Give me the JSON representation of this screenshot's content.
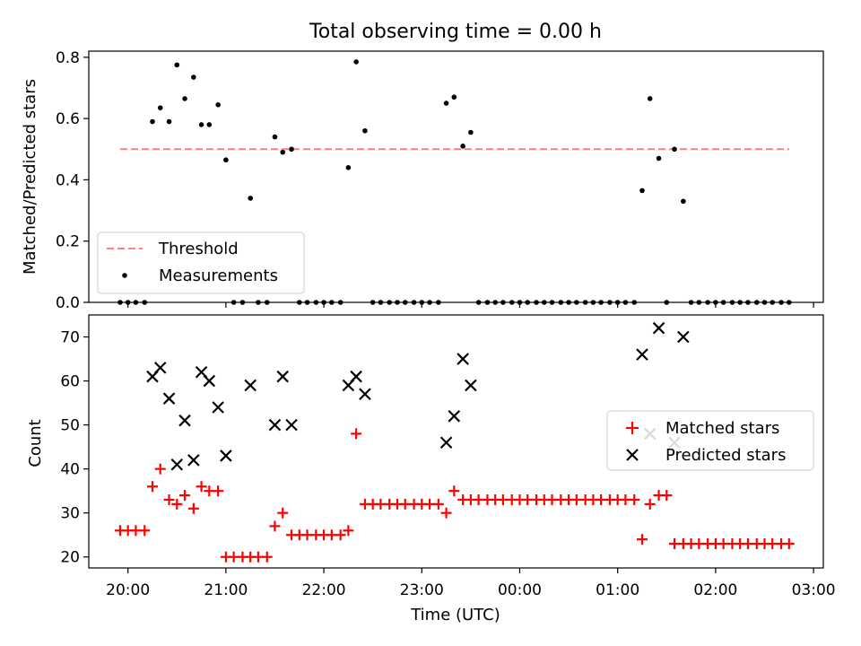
{
  "title": "Total observing time = 0.00 h",
  "x_axis": {
    "label": "Time (UTC)",
    "ticks": [
      {
        "value": 20.0,
        "label": "20:00"
      },
      {
        "value": 21.0,
        "label": "21:00"
      },
      {
        "value": 22.0,
        "label": "22:00"
      },
      {
        "value": 23.0,
        "label": "23:00"
      },
      {
        "value": 24.0,
        "label": "00:00"
      },
      {
        "value": 25.0,
        "label": "01:00"
      },
      {
        "value": 26.0,
        "label": "02:00"
      },
      {
        "value": 27.0,
        "label": "03:00"
      }
    ]
  },
  "colors": {
    "threshold": "#ff7f7f",
    "measurements": "#000000",
    "matched": "#ff0000",
    "predicted": "#000000"
  },
  "chart_data": [
    {
      "type": "scatter",
      "ylabel": "Matched/Predicted stars",
      "xlim": [
        19.6,
        27.1
      ],
      "ylim": [
        0.0,
        0.82
      ],
      "y_ticks": [
        "0.0",
        "0.2",
        "0.4",
        "0.6",
        "0.8"
      ],
      "y_tick_values": [
        0.0,
        0.2,
        0.4,
        0.6,
        0.8
      ],
      "legend_position": "lower-left",
      "threshold": {
        "name": "Threshold",
        "value": 0.5,
        "x_range": [
          19.92,
          26.75
        ]
      },
      "series": [
        {
          "name": "Measurements",
          "x": [
            19.92,
            20.0,
            20.08,
            20.17,
            20.25,
            20.33,
            20.42,
            20.5,
            20.58,
            20.67,
            20.75,
            20.83,
            20.92,
            21.0,
            21.08,
            21.17,
            21.25,
            21.33,
            21.42,
            21.5,
            21.58,
            21.67,
            21.75,
            21.83,
            21.92,
            22.0,
            22.08,
            22.17,
            22.25,
            22.33,
            22.42,
            22.5,
            22.58,
            22.67,
            22.75,
            22.83,
            22.92,
            23.0,
            23.08,
            23.17,
            23.25,
            23.33,
            23.42,
            23.5,
            23.58,
            23.67,
            23.75,
            23.83,
            23.92,
            24.0,
            24.08,
            24.17,
            24.25,
            24.33,
            24.42,
            24.5,
            24.58,
            24.67,
            24.75,
            24.83,
            24.92,
            25.0,
            25.08,
            25.17,
            25.25,
            25.33,
            25.42,
            25.5,
            25.58,
            25.67,
            25.75,
            25.83,
            25.92,
            26.0,
            26.08,
            26.17,
            26.25,
            26.33,
            26.42,
            26.5,
            26.58,
            26.67,
            26.75
          ],
          "y": [
            0,
            0,
            0,
            0,
            0.59,
            0.635,
            0.59,
            0.775,
            0.665,
            0.735,
            0.58,
            0.58,
            0.645,
            0.465,
            0,
            0,
            0.34,
            0,
            0,
            0.54,
            0.49,
            0.5,
            0,
            0,
            0,
            0,
            0,
            0,
            0.44,
            0.785,
            0.56,
            0,
            0,
            0,
            0,
            0,
            0,
            0,
            0,
            0,
            0.65,
            0.67,
            0.51,
            0.555,
            0,
            0,
            0,
            0,
            0,
            0,
            0,
            0,
            0,
            0,
            0,
            0,
            0,
            0,
            0,
            0,
            0,
            0,
            0,
            0,
            0.365,
            0.665,
            0.47,
            0,
            0.5,
            0.33,
            0,
            0,
            0,
            0,
            0,
            0,
            0,
            0,
            0,
            0,
            0,
            0,
            0
          ]
        }
      ]
    },
    {
      "type": "scatter",
      "ylabel": "Count",
      "xlim": [
        19.6,
        27.1
      ],
      "ylim": [
        17.5,
        75
      ],
      "y_ticks": [
        "20",
        "30",
        "40",
        "50",
        "60",
        "70"
      ],
      "y_tick_values": [
        20,
        30,
        40,
        50,
        60,
        70
      ],
      "legend_position": "center-right",
      "series": [
        {
          "name": "Matched stars",
          "x": [
            19.92,
            20.0,
            20.08,
            20.17,
            20.25,
            20.33,
            20.42,
            20.5,
            20.58,
            20.67,
            20.75,
            20.83,
            20.92,
            21.0,
            21.08,
            21.17,
            21.25,
            21.33,
            21.42,
            21.5,
            21.58,
            21.67,
            21.75,
            21.83,
            21.92,
            22.0,
            22.08,
            22.17,
            22.25,
            22.33,
            22.42,
            22.5,
            22.58,
            22.67,
            22.75,
            22.83,
            22.92,
            23.0,
            23.08,
            23.17,
            23.25,
            23.33,
            23.42,
            23.5,
            23.58,
            23.67,
            23.75,
            23.83,
            23.92,
            24.0,
            24.08,
            24.17,
            24.25,
            24.33,
            24.42,
            24.5,
            24.58,
            24.67,
            24.75,
            24.83,
            24.92,
            25.0,
            25.08,
            25.17,
            25.25,
            25.33,
            25.42,
            25.5,
            25.58,
            25.67,
            25.75,
            25.83,
            25.92,
            26.0,
            26.08,
            26.17,
            26.25,
            26.33,
            26.42,
            26.5,
            26.58,
            26.67,
            26.75
          ],
          "y": [
            26,
            26,
            26,
            26,
            36,
            40,
            33,
            32,
            34,
            31,
            36,
            35,
            35,
            20,
            20,
            20,
            20,
            20,
            20,
            27,
            30,
            25,
            25,
            25,
            25,
            25,
            25,
            25,
            26,
            48,
            32,
            32,
            32,
            32,
            32,
            32,
            32,
            32,
            32,
            32,
            30,
            35,
            33,
            33,
            33,
            33,
            33,
            33,
            33,
            33,
            33,
            33,
            33,
            33,
            33,
            33,
            33,
            33,
            33,
            33,
            33,
            33,
            33,
            33,
            24,
            32,
            34,
            34,
            23,
            23,
            23,
            23,
            23,
            23,
            23,
            23,
            23,
            23,
            23,
            23,
            23,
            23,
            23
          ]
        },
        {
          "name": "Predicted stars",
          "x": [
            20.25,
            20.33,
            20.42,
            20.5,
            20.58,
            20.67,
            20.75,
            20.83,
            20.92,
            21.0,
            21.25,
            21.5,
            21.58,
            21.67,
            22.25,
            22.33,
            22.42,
            23.25,
            23.33,
            23.42,
            23.5,
            25.25,
            25.33,
            25.42,
            25.58,
            25.67
          ],
          "y": [
            61,
            63,
            56,
            41,
            51,
            42,
            62,
            60,
            54,
            43,
            59,
            50,
            61,
            50,
            59,
            61,
            57,
            46,
            52,
            65,
            59,
            66,
            48,
            72,
            46,
            70
          ]
        }
      ]
    }
  ]
}
